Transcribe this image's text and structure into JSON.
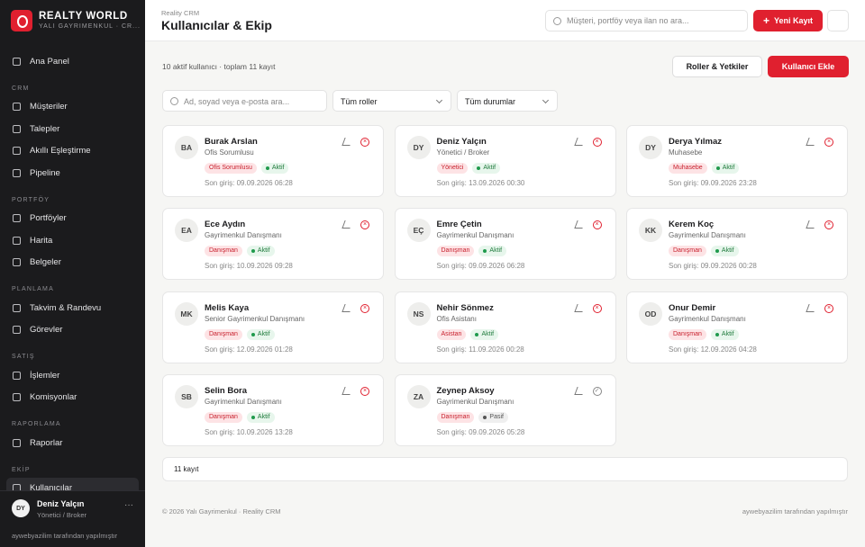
{
  "sidebar": {
    "brand": {
      "title": "REALTY WORLD",
      "subtitle": "YALI GAYRIMENKUL · CR..."
    },
    "home": "Ana Panel",
    "sections": [
      {
        "title": "CRM",
        "items": [
          "Müşteriler",
          "Talepler",
          "Akıllı Eşleştirme",
          "Pipeline"
        ]
      },
      {
        "title": "PORTFÖY",
        "items": [
          "Portföyler",
          "Harita",
          "Belgeler"
        ]
      },
      {
        "title": "PLANLAMA",
        "items": [
          "Takvim & Randevu",
          "Görevler"
        ]
      },
      {
        "title": "SATIŞ",
        "items": [
          "İşlemler",
          "Komisyonlar"
        ]
      },
      {
        "title": "RAPORLAMA",
        "items": [
          "Raporlar"
        ]
      },
      {
        "title": "EKİP",
        "items": [
          "Kullanıcılar"
        ]
      }
    ],
    "user": {
      "initials": "DY",
      "name": "Deniz Yalçın",
      "role": "Yönetici / Broker"
    },
    "credit": "aywebyazilim tarafından yapılmıştır"
  },
  "header": {
    "breadcrumb": "Reality CRM",
    "title": "Kullanıcılar & Ekip",
    "search_placeholder": "Müşteri, portföy veya ilan no ara...",
    "new_button": "Yeni Kayıt"
  },
  "toolbar": {
    "summary": "10 aktif kullanıcı · toplam 11 kayıt",
    "roles_button": "Roller & Yetkiler",
    "add_button": "Kullanıcı Ekle"
  },
  "filters": {
    "search_placeholder": "Ad, soyad veya e-posta ara...",
    "role": "Tüm roller",
    "status": "Tüm durumlar"
  },
  "users": [
    {
      "initials": "BA",
      "name": "Burak Arslan",
      "title": "Ofis Sorumlusu",
      "role": "Ofis Sorumlusu",
      "status": "Aktif",
      "last_login": "Son giriş: 09.09.2026 06:28"
    },
    {
      "initials": "DY",
      "name": "Deniz Yalçın",
      "title": "Yönetici / Broker",
      "role": "Yönetici",
      "status": "Aktif",
      "last_login": "Son giriş: 13.09.2026 00:30"
    },
    {
      "initials": "DY",
      "name": "Derya Yılmaz",
      "title": "Muhasebe",
      "role": "Muhasebe",
      "status": "Aktif",
      "last_login": "Son giriş: 09.09.2026 23:28"
    },
    {
      "initials": "EA",
      "name": "Ece Aydın",
      "title": "Gayrimenkul Danışmanı",
      "role": "Danışman",
      "status": "Aktif",
      "last_login": "Son giriş: 10.09.2026 09:28"
    },
    {
      "initials": "EÇ",
      "name": "Emre Çetin",
      "title": "Gayrimenkul Danışmanı",
      "role": "Danışman",
      "status": "Aktif",
      "last_login": "Son giriş: 09.09.2026 06:28"
    },
    {
      "initials": "KK",
      "name": "Kerem Koç",
      "title": "Gayrimenkul Danışmanı",
      "role": "Danışman",
      "status": "Aktif",
      "last_login": "Son giriş: 09.09.2026 00:28"
    },
    {
      "initials": "MK",
      "name": "Melis Kaya",
      "title": "Senior Gayrimenkul Danışmanı",
      "role": "Danışman",
      "status": "Aktif",
      "last_login": "Son giriş: 12.09.2026 01:28"
    },
    {
      "initials": "NS",
      "name": "Nehir Sönmez",
      "title": "Ofis Asistanı",
      "role": "Asistan",
      "status": "Aktif",
      "last_login": "Son giriş: 11.09.2026 00:28"
    },
    {
      "initials": "OD",
      "name": "Onur Demir",
      "title": "Gayrimenkul Danışmanı",
      "role": "Danışman",
      "status": "Aktif",
      "last_login": "Son giriş: 12.09.2026 04:28"
    },
    {
      "initials": "SB",
      "name": "Selin Bora",
      "title": "Gayrimenkul Danışmanı",
      "role": "Danışman",
      "status": "Aktif",
      "last_login": "Son giriş: 10.09.2026 13:28"
    },
    {
      "initials": "ZA",
      "name": "Zeynep Aksoy",
      "title": "Gayrimenkul Danışmanı",
      "role": "Danışman",
      "status": "Pasif",
      "last_login": "Son giriş: 09.09.2026 05:28"
    }
  ],
  "list_footer": "11 kayıt",
  "footer": {
    "left": "© 2026 Yalı Gayrimenkul · Reality CRM",
    "right": "aywebyazilim tarafından yapılmıştır"
  }
}
